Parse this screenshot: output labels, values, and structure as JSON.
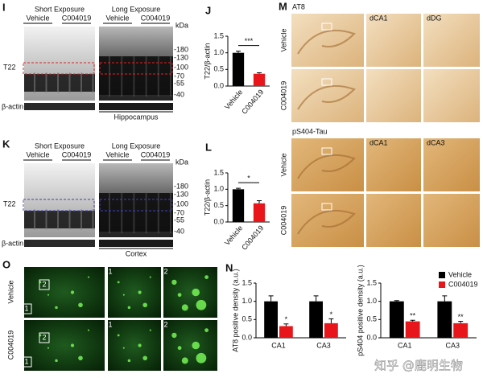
{
  "panels": {
    "I": {
      "label": "I",
      "short": "Short Exposure",
      "long": "Long Exposure",
      "groups": [
        "Vehicle",
        "C004019",
        "Vehicle",
        "C004019"
      ],
      "kda": "kDa",
      "markers": [
        "-180",
        "-130",
        "-100",
        "-70",
        "-55",
        "-40"
      ],
      "band": "T22",
      "control": "β-actin",
      "tissue": "Hippocampus"
    },
    "K": {
      "label": "K",
      "short": "Short Exposure",
      "long": "Long Exposure",
      "groups": [
        "Vehicle",
        "C004019",
        "Vehicle",
        "C004019"
      ],
      "kda": "kDa",
      "markers": [
        "-180",
        "-130",
        "-100",
        "-70",
        "-55",
        "-40"
      ],
      "band": "T22",
      "control": "β-actin",
      "tissue": "Cortex"
    },
    "M": {
      "label": "M",
      "stain1": "AT8",
      "crops1": [
        "dCA1",
        "dDG"
      ],
      "rows1": [
        "Vehicle",
        "C004019"
      ],
      "stain2": "pS404-Tau",
      "crops2": [
        "dCA1",
        "dCA3"
      ],
      "rows2": [
        "Vehicle",
        "C004019"
      ]
    },
    "O": {
      "label": "O",
      "rows": [
        "Vehicle",
        "C004019"
      ],
      "insets": [
        [
          "2",
          "1",
          "1",
          "2"
        ],
        [
          "2",
          "1",
          "1",
          "2"
        ]
      ]
    }
  },
  "chart_data": [
    {
      "type": "bar",
      "label": "J",
      "ylabel": "T22/β-actin",
      "categories": [
        "Vehicle",
        "C004019"
      ],
      "values": [
        1.0,
        0.37
      ],
      "errors": [
        0.05,
        0.03
      ],
      "colors": [
        "#000000",
        "#e8161b"
      ],
      "significance": "***",
      "ylim": [
        0,
        1.5
      ],
      "yticks": [
        {
          "value": 0,
          "label": "0.0"
        },
        {
          "value": 0.5,
          "label": "0.5"
        },
        {
          "value": 1,
          "label": "1.0"
        },
        {
          "value": 1.5,
          "label": "1.5"
        }
      ]
    },
    {
      "type": "bar",
      "label": "L",
      "ylabel": "T22/β-actin",
      "categories": [
        "Vehicle",
        "C004019"
      ],
      "values": [
        1.0,
        0.57
      ],
      "errors": [
        0.03,
        0.08
      ],
      "colors": [
        "#000000",
        "#e8161b"
      ],
      "significance": "*",
      "ylim": [
        0,
        1.5
      ],
      "yticks": [
        {
          "value": 0,
          "label": "0.0"
        },
        {
          "value": 0.5,
          "label": "0.5"
        },
        {
          "value": 1,
          "label": "1.0"
        },
        {
          "value": 1.5,
          "label": "1.5"
        }
      ]
    },
    {
      "type": "bar",
      "label": "N",
      "ylabel": "AT8 positive density (a.u.)",
      "categories": [
        "CA1",
        "CA3"
      ],
      "series": [
        {
          "color": "#000000",
          "values": [
            1.0,
            1.0
          ],
          "errors": [
            0.15,
            0.15
          ]
        },
        {
          "color": "#e8161b",
          "values": [
            0.32,
            0.4
          ],
          "errors": [
            0.06,
            0.12
          ]
        }
      ],
      "significance": [
        "*",
        "*"
      ],
      "ylim": [
        0,
        1.5
      ],
      "yticks": [
        {
          "value": 0,
          "label": "0.0"
        },
        {
          "value": 0.5,
          "label": "0.5"
        },
        {
          "value": 1,
          "label": "1.0"
        },
        {
          "value": 1.5,
          "label": "1.5"
        }
      ]
    },
    {
      "type": "bar",
      "ylabel": "pS404 positive density (a.u.)",
      "categories": [
        "CA1",
        "CA3"
      ],
      "series": [
        {
          "name": "Vehicle",
          "color": "#000000",
          "values": [
            1.0,
            1.0
          ],
          "errors": [
            0.02,
            0.15
          ]
        },
        {
          "name": "C004019",
          "color": "#e8161b",
          "values": [
            0.45,
            0.4
          ],
          "errors": [
            0.03,
            0.05
          ]
        }
      ],
      "significance": [
        "**",
        "**"
      ],
      "ylim": [
        0,
        1.5
      ],
      "yticks": [
        {
          "value": 0,
          "label": "0.0"
        },
        {
          "value": 0.5,
          "label": "0.5"
        },
        {
          "value": 1,
          "label": "1.0"
        },
        {
          "value": 1.5,
          "label": "1.5"
        }
      ]
    }
  ],
  "watermark": "知乎 @鹿明生物"
}
